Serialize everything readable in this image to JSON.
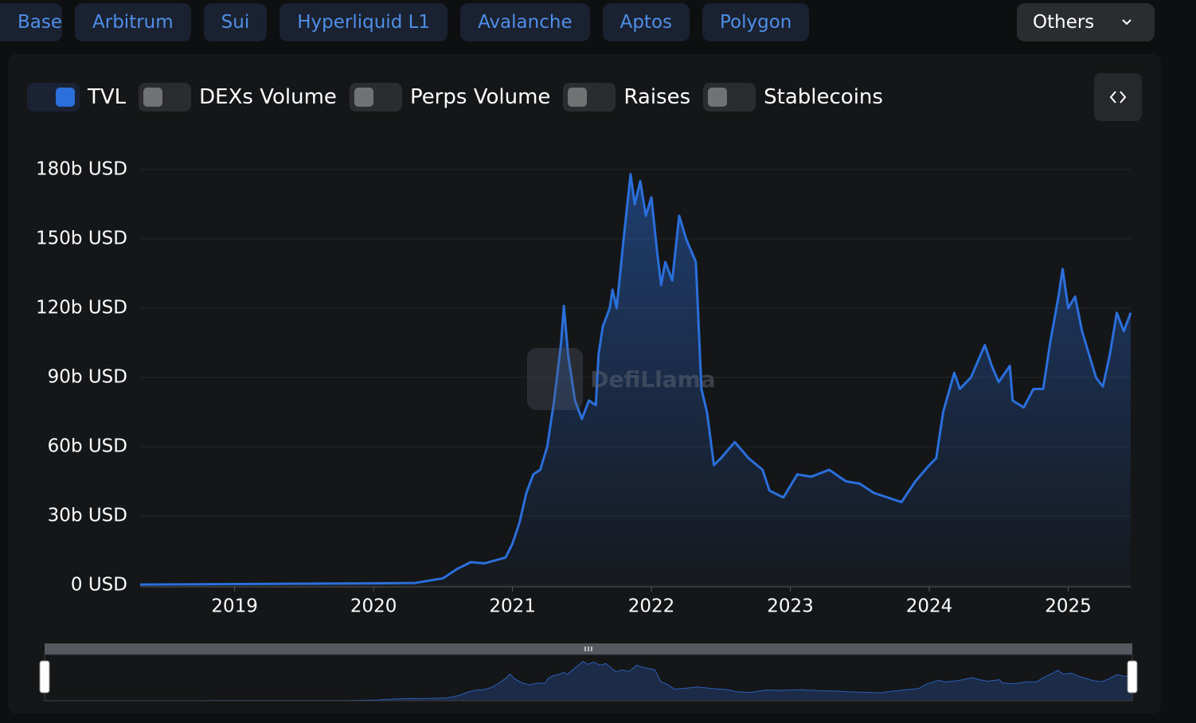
{
  "tabs": [
    "Base",
    "Arbitrum",
    "Sui",
    "Hyperliquid L1",
    "Avalanche",
    "Aptos",
    "Polygon"
  ],
  "dropdown": "Others",
  "toggles": [
    {
      "label": "TVL",
      "on": true
    },
    {
      "label": "DEXs Volume",
      "on": false
    },
    {
      "label": "Perps Volume",
      "on": false
    },
    {
      "label": "Raises",
      "on": false
    },
    {
      "label": "Stablecoins",
      "on": false
    }
  ],
  "watermark": "DefiLlama",
  "chart_data": {
    "type": "area",
    "color": "#2a6fdb",
    "x": [
      2018.32,
      2019,
      2019.5,
      2020,
      2020.3,
      2020.5,
      2020.6,
      2020.7,
      2020.8,
      2020.95,
      2021.0,
      2021.05,
      2021.1,
      2021.15,
      2021.2,
      2021.25,
      2021.3,
      2021.35,
      2021.37,
      2021.4,
      2021.45,
      2021.5,
      2021.55,
      2021.6,
      2021.62,
      2021.65,
      2021.7,
      2021.72,
      2021.75,
      2021.8,
      2021.85,
      2021.88,
      2021.92,
      2021.96,
      2022.0,
      2022.04,
      2022.07,
      2022.1,
      2022.15,
      2022.2,
      2022.25,
      2022.32,
      2022.36,
      2022.4,
      2022.45,
      2022.5,
      2022.6,
      2022.7,
      2022.8,
      2022.85,
      2022.95,
      2023.05,
      2023.15,
      2023.28,
      2023.4,
      2023.5,
      2023.6,
      2023.7,
      2023.8,
      2023.9,
      2024.0,
      2024.05,
      2024.1,
      2024.18,
      2024.22,
      2024.3,
      2024.4,
      2024.45,
      2024.5,
      2024.58,
      2024.6,
      2024.68,
      2024.75,
      2024.82,
      2024.87,
      2024.93,
      2024.96,
      2025.0,
      2025.05,
      2025.1,
      2025.15,
      2025.2,
      2025.25,
      2025.3,
      2025.35,
      2025.4,
      2025.45
    ],
    "values": [
      0.3,
      0.5,
      0.7,
      0.8,
      1.0,
      3,
      7,
      10,
      9.5,
      12,
      18,
      27,
      40,
      48,
      50,
      60,
      80,
      105,
      121,
      100,
      80,
      72,
      80,
      78,
      100,
      112,
      120,
      128,
      120,
      150,
      178,
      165,
      175,
      160,
      168,
      145,
      130,
      140,
      132,
      160,
      150,
      140,
      85,
      75,
      52,
      55,
      62,
      55,
      50,
      41,
      38,
      48,
      47,
      50,
      45,
      44,
      40,
      38,
      36,
      45,
      52,
      55,
      75,
      92,
      85,
      90,
      104,
      95,
      88,
      95,
      80,
      77,
      85,
      85,
      105,
      125,
      137,
      120,
      125,
      110,
      100,
      90,
      86,
      100,
      118,
      110,
      118
    ],
    "xlim": [
      2018.32,
      2025.45
    ],
    "xticks": [
      2019,
      2020,
      2021,
      2022,
      2023,
      2024,
      2025
    ],
    "ylim": [
      0,
      180
    ],
    "yticks": [
      {
        "value": 0,
        "label": "0 USD"
      },
      {
        "value": 30,
        "label": "30b USD"
      },
      {
        "value": 60,
        "label": "60b USD"
      },
      {
        "value": 90,
        "label": "90b USD"
      },
      {
        "value": 120,
        "label": "120b USD"
      },
      {
        "value": 150,
        "label": "150b USD"
      },
      {
        "value": 180,
        "label": "180b USD"
      }
    ],
    "grid": true
  }
}
